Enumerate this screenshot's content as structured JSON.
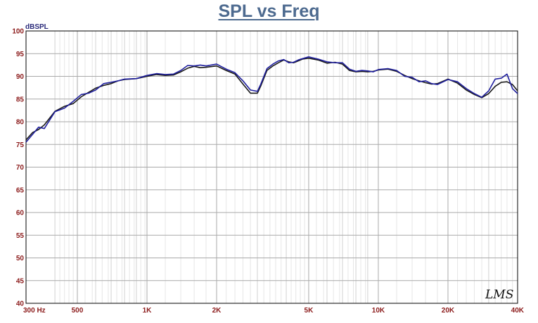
{
  "chart_data": {
    "type": "line",
    "title": "SPL vs Freq",
    "ylabel": "dBSPL",
    "xscale": "log",
    "xlim": [
      300,
      40000
    ],
    "ylim": [
      40,
      100
    ],
    "y_ticks": [
      40,
      45,
      50,
      55,
      60,
      65,
      70,
      75,
      80,
      85,
      90,
      95,
      100
    ],
    "x_tick_labels": [
      {
        "f": 300,
        "label": "300  Hz"
      },
      {
        "f": 500,
        "label": "500"
      },
      {
        "f": 1000,
        "label": "1K"
      },
      {
        "f": 2000,
        "label": "2K"
      },
      {
        "f": 5000,
        "label": "5K"
      },
      {
        "f": 10000,
        "label": "10K"
      },
      {
        "f": 20000,
        "label": "20K"
      },
      {
        "f": 40000,
        "label": "40K"
      }
    ],
    "grid": true,
    "watermark": "LMS",
    "series": [
      {
        "color": "#1a1a1a",
        "x": [
          300,
          320,
          340,
          360,
          400,
          440,
          480,
          520,
          560,
          600,
          650,
          700,
          750,
          800,
          900,
          1000,
          1100,
          1200,
          1300,
          1400,
          1500,
          1600,
          1700,
          1800,
          2000,
          2200,
          2400,
          2600,
          2800,
          3000,
          3100,
          3300,
          3500,
          3700,
          3900,
          4100,
          4300,
          4500,
          4700,
          5000,
          5500,
          6000,
          6500,
          7000,
          7500,
          8000,
          8500,
          9000,
          9500,
          10000,
          11000,
          12000,
          13000,
          14000,
          15000,
          16000,
          17000,
          18000,
          20000,
          22000,
          24000,
          26000,
          28000,
          30000,
          32000,
          34000,
          36000,
          38000,
          40000
        ],
        "y": [
          76.0,
          77.6,
          78.3,
          79.3,
          82.3,
          83.4,
          84.0,
          85.5,
          86.5,
          87.4,
          88.0,
          88.4,
          89.0,
          89.3,
          89.5,
          90.0,
          90.4,
          90.2,
          90.3,
          91.0,
          91.8,
          92.2,
          91.9,
          92.0,
          92.3,
          91.3,
          90.5,
          88.3,
          86.3,
          86.3,
          87.8,
          91.3,
          92.3,
          93.0,
          93.6,
          93.2,
          93.0,
          93.4,
          93.8,
          94.0,
          93.6,
          92.9,
          93.1,
          92.7,
          91.3,
          91.0,
          91.1,
          91.0,
          91.1,
          91.4,
          91.6,
          91.1,
          90.2,
          89.5,
          89.0,
          88.6,
          88.3,
          88.4,
          89.4,
          88.5,
          87.0,
          86.0,
          85.3,
          86.2,
          87.8,
          88.7,
          88.8,
          88.2,
          86.8
        ]
      },
      {
        "color": "#1f1f9e",
        "x": [
          300,
          320,
          340,
          360,
          400,
          440,
          480,
          520,
          560,
          600,
          650,
          700,
          750,
          800,
          900,
          1000,
          1100,
          1200,
          1300,
          1400,
          1500,
          1600,
          1700,
          1800,
          2000,
          2200,
          2400,
          2600,
          2800,
          3000,
          3100,
          3300,
          3500,
          3700,
          3900,
          4100,
          4300,
          4500,
          4700,
          5000,
          5500,
          6000,
          6500,
          7000,
          7500,
          8000,
          8500,
          9000,
          9500,
          10000,
          11000,
          12000,
          13000,
          14000,
          15000,
          16000,
          17000,
          18000,
          20000,
          22000,
          24000,
          26000,
          28000,
          30000,
          32000,
          34000,
          36000,
          38000,
          40000
        ],
        "y": [
          75.5,
          77.2,
          78.8,
          78.5,
          82.2,
          83.0,
          84.5,
          86.0,
          86.3,
          87.0,
          88.4,
          88.7,
          89.0,
          89.4,
          89.5,
          90.2,
          90.6,
          90.4,
          90.5,
          91.3,
          92.4,
          92.3,
          92.5,
          92.3,
          92.7,
          91.6,
          90.8,
          89.0,
          87.0,
          86.7,
          88.2,
          91.7,
          92.7,
          93.4,
          93.7,
          93.0,
          93.1,
          93.6,
          93.9,
          94.3,
          93.8,
          93.2,
          93.0,
          93.0,
          91.6,
          91.1,
          91.3,
          91.2,
          91.0,
          91.5,
          91.7,
          91.3,
          90.0,
          89.8,
          88.8,
          89.0,
          88.4,
          88.2,
          89.3,
          88.8,
          87.3,
          86.2,
          85.4,
          86.8,
          89.4,
          89.6,
          90.5,
          87.3,
          86.2
        ]
      }
    ]
  }
}
